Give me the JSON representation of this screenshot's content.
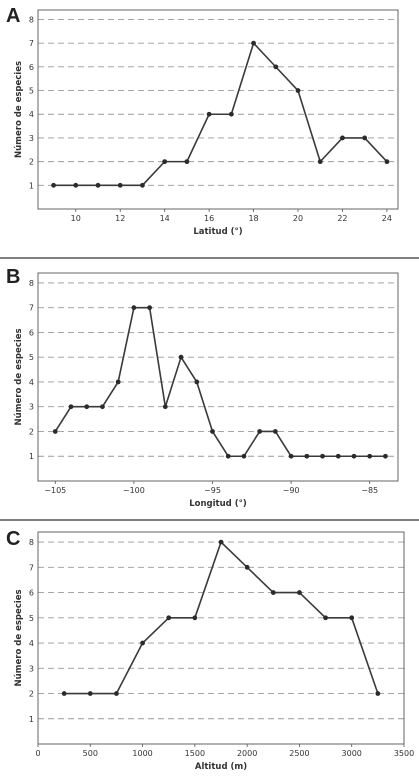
{
  "colors": {
    "line": "#3a3a3a",
    "grid": "#999999",
    "point": "#2b2b2b"
  },
  "chart_data": [
    {
      "type": "line",
      "panel": "A",
      "xlabel": "Latitud (°)",
      "ylabel": "Número de especies",
      "xlim": [
        8.3,
        24.5
      ],
      "ylim": [
        0,
        8.4
      ],
      "xticks": [
        10,
        12,
        14,
        16,
        18,
        20,
        22,
        24
      ],
      "yticks": [
        1,
        2,
        3,
        4,
        5,
        6,
        7,
        8
      ],
      "grid": true,
      "series": [
        {
          "x": [
            9,
            10,
            11,
            12,
            13,
            14,
            15,
            16,
            17,
            18,
            19,
            20,
            21,
            22,
            23,
            24
          ],
          "y": [
            1,
            1,
            1,
            1,
            1,
            2,
            2,
            4,
            4,
            7,
            6,
            5,
            2,
            3,
            3,
            2
          ]
        }
      ]
    },
    {
      "type": "line",
      "panel": "B",
      "xlabel": "Longitud (°)",
      "ylabel": "Número de especies",
      "xlim": [
        -106.1,
        -83.2
      ],
      "ylim": [
        0,
        8.4
      ],
      "xticks": [
        -105,
        -100,
        -95,
        -90,
        -85
      ],
      "yticks": [
        1,
        2,
        3,
        4,
        5,
        6,
        7,
        8
      ],
      "grid": true,
      "series": [
        {
          "x": [
            -105,
            -104,
            -103,
            -102,
            -101,
            -100,
            -99,
            -98,
            -97,
            -96,
            -95,
            -94,
            -93,
            -92,
            -91,
            -90,
            -89,
            -88,
            -87,
            -86,
            -85,
            -84
          ],
          "y": [
            2,
            3,
            3,
            3,
            4,
            7,
            7,
            3,
            5,
            4,
            2,
            1,
            1,
            2,
            2,
            1,
            1,
            1,
            1,
            1,
            1,
            1
          ]
        }
      ]
    },
    {
      "type": "line",
      "panel": "C",
      "xlabel": "Altitud (m)",
      "ylabel": "Número de especies",
      "xlim": [
        0,
        3500
      ],
      "ylim": [
        0,
        8.4
      ],
      "xticks": [
        0,
        500,
        1000,
        1500,
        2000,
        2500,
        3000,
        3500
      ],
      "yticks": [
        1,
        2,
        3,
        4,
        5,
        6,
        7,
        8
      ],
      "grid": true,
      "series": [
        {
          "x": [
            250,
            500,
            750,
            1000,
            1250,
            1500,
            1750,
            2000,
            2250,
            2500,
            2750,
            3000,
            3250
          ],
          "y": [
            2,
            2,
            2,
            4,
            5,
            5,
            8,
            7,
            6,
            6,
            5,
            5,
            2
          ]
        }
      ]
    }
  ]
}
